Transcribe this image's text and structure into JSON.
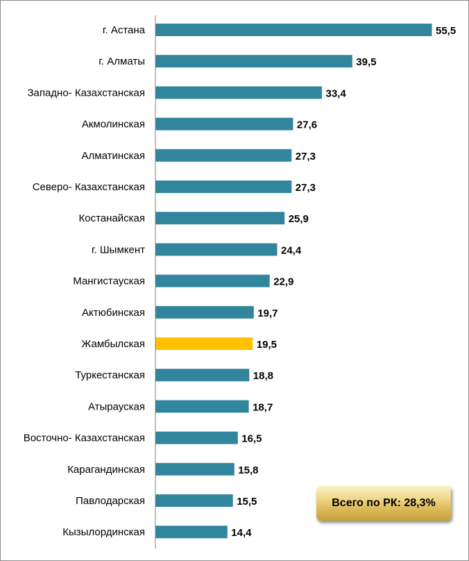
{
  "chart_data": {
    "type": "bar",
    "orientation": "horizontal",
    "categories": [
      "г. Астана",
      "г. Алматы",
      "Западно- Казахстанская",
      "Акмолинская",
      "Алматинская",
      "Северо- Казахстанская",
      "Костанайская",
      "г. Шымкент",
      "Мангистауская",
      "Актюбинская",
      "Жамбылская",
      "Туркестанская",
      "Атырауская",
      "Восточно- Казахстанская",
      "Карагандинская",
      "Павлодарская",
      "Кызылординская"
    ],
    "values": [
      55.5,
      39.5,
      33.4,
      27.6,
      27.3,
      27.3,
      25.9,
      24.4,
      22.9,
      19.7,
      19.5,
      18.8,
      18.7,
      16.5,
      15.8,
      15.5,
      14.4
    ],
    "value_labels": [
      "55,5",
      "39,5",
      "33,4",
      "27,6",
      "27,3",
      "27,3",
      "25,9",
      "24,4",
      "22,9",
      "19,7",
      "19,5",
      "18,8",
      "18,7",
      "16,5",
      "15,8",
      "15,5",
      "14,4"
    ],
    "highlight_category": "Жамбылская",
    "colors": {
      "bar": "#31859c",
      "highlight": "#ffc000",
      "axis": "#808080"
    },
    "xlim": [
      0,
      55.5
    ],
    "grid": false,
    "legend": false,
    "title": "",
    "xlabel": "",
    "ylabel": ""
  },
  "summary": {
    "total_label": "Всего по РК: 28,3%"
  }
}
